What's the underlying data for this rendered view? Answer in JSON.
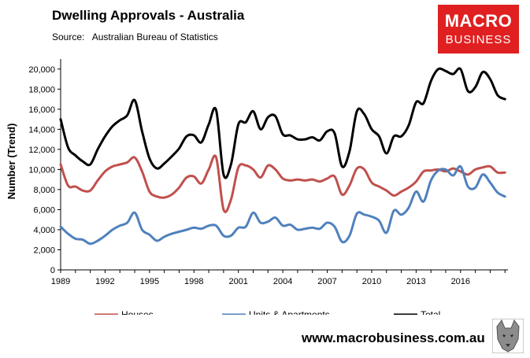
{
  "title": "Dwelling Approvals - Australia",
  "source": "Source:   Australian Bureau of Statistics",
  "logo": {
    "line1": "MACRO",
    "line2": "BUSINESS"
  },
  "url": "www.macrobusiness.com.au",
  "chart_data": {
    "type": "line",
    "title": "Dwelling Approvals - Australia",
    "xlabel": "",
    "ylabel": "Number (Trend)",
    "xlim": [
      1989,
      2019.2
    ],
    "ylim": [
      0,
      21000
    ],
    "yticks": [
      0,
      2000,
      4000,
      6000,
      8000,
      10000,
      12000,
      14000,
      16000,
      18000,
      20000
    ],
    "ytick_labels": [
      "0",
      "2,000",
      "4,000",
      "6,000",
      "8,000",
      "10,000",
      "12,000",
      "14,000",
      "16,000",
      "18,000",
      "20,000"
    ],
    "xticks": [
      1989,
      1992,
      1995,
      1998,
      2001,
      2004,
      2007,
      2010,
      2013,
      2016
    ],
    "xtick_labels": [
      "1989",
      "1992",
      "1995",
      "1998",
      "2001",
      "2004",
      "2007",
      "2010",
      "2013",
      "2016"
    ],
    "legend_position": "bottom",
    "series": [
      {
        "name": "Houses",
        "color": "#c0504d",
        "x": [
          1989.0,
          1989.5,
          1990.0,
          1990.5,
          1991.0,
          1991.5,
          1992.0,
          1992.5,
          1993.0,
          1993.5,
          1994.0,
          1994.5,
          1995.0,
          1995.5,
          1996.0,
          1996.5,
          1997.0,
          1997.5,
          1998.0,
          1998.5,
          1999.0,
          1999.5,
          2000.0,
          2000.5,
          2001.0,
          2001.5,
          2002.0,
          2002.5,
          2003.0,
          2003.5,
          2004.0,
          2004.5,
          2005.0,
          2005.5,
          2006.0,
          2006.5,
          2007.0,
          2007.5,
          2008.0,
          2008.5,
          2009.0,
          2009.5,
          2010.0,
          2010.5,
          2011.0,
          2011.5,
          2012.0,
          2012.5,
          2013.0,
          2013.5,
          2014.0,
          2014.5,
          2015.0,
          2015.5,
          2016.0,
          2016.5,
          2017.0,
          2017.5,
          2018.0,
          2018.5,
          2019.0
        ],
        "values": [
          10500,
          8400,
          8300,
          7900,
          7900,
          8900,
          9800,
          10300,
          10500,
          10700,
          11200,
          9800,
          7800,
          7300,
          7200,
          7500,
          8200,
          9200,
          9300,
          8600,
          10000,
          11200,
          6000,
          7000,
          10200,
          10400,
          10000,
          9200,
          10400,
          10000,
          9100,
          8900,
          9000,
          8900,
          9000,
          8800,
          9100,
          9300,
          7500,
          8400,
          10100,
          10000,
          8700,
          8300,
          7900,
          7400,
          7800,
          8200,
          8800,
          9800,
          9900,
          10000,
          9800,
          10100,
          9800,
          9500,
          10000,
          10200,
          10300,
          9700,
          9700
        ]
      },
      {
        "name": "Units & Apartments",
        "color": "#4f81bd",
        "x": [
          1989.0,
          1989.5,
          1990.0,
          1990.5,
          1991.0,
          1991.5,
          1992.0,
          1992.5,
          1993.0,
          1993.5,
          1994.0,
          1994.5,
          1995.0,
          1995.5,
          1996.0,
          1996.5,
          1997.0,
          1997.5,
          1998.0,
          1998.5,
          1999.0,
          1999.5,
          2000.0,
          2000.5,
          2001.0,
          2001.5,
          2002.0,
          2002.5,
          2003.0,
          2003.5,
          2004.0,
          2004.5,
          2005.0,
          2005.5,
          2006.0,
          2006.5,
          2007.0,
          2007.5,
          2008.0,
          2008.5,
          2009.0,
          2009.5,
          2010.0,
          2010.5,
          2011.0,
          2011.5,
          2012.0,
          2012.5,
          2013.0,
          2013.5,
          2014.0,
          2014.5,
          2015.0,
          2015.5,
          2016.0,
          2016.5,
          2017.0,
          2017.5,
          2018.0,
          2018.5,
          2019.0
        ],
        "values": [
          4300,
          3600,
          3100,
          3000,
          2600,
          2900,
          3400,
          4000,
          4400,
          4700,
          5700,
          4000,
          3500,
          2900,
          3300,
          3600,
          3800,
          4000,
          4200,
          4100,
          4400,
          4400,
          3400,
          3400,
          4200,
          4300,
          5700,
          4700,
          4800,
          5200,
          4400,
          4500,
          4000,
          4100,
          4200,
          4100,
          4700,
          4300,
          2800,
          3400,
          5600,
          5500,
          5300,
          4900,
          3700,
          5900,
          5500,
          6200,
          7800,
          6800,
          8900,
          9900,
          10000,
          9400,
          10300,
          8300,
          8200,
          9500,
          8700,
          7700,
          7300
        ]
      },
      {
        "name": "Total",
        "color": "#000000",
        "x": [
          1989.0,
          1989.5,
          1990.0,
          1990.5,
          1991.0,
          1991.5,
          1992.0,
          1992.5,
          1993.0,
          1993.5,
          1994.0,
          1994.5,
          1995.0,
          1995.5,
          1996.0,
          1996.5,
          1997.0,
          1997.5,
          1998.0,
          1998.5,
          1999.0,
          1999.5,
          2000.0,
          2000.5,
          2001.0,
          2001.5,
          2002.0,
          2002.5,
          2003.0,
          2003.5,
          2004.0,
          2004.5,
          2005.0,
          2005.5,
          2006.0,
          2006.5,
          2007.0,
          2007.5,
          2008.0,
          2008.5,
          2009.0,
          2009.5,
          2010.0,
          2010.5,
          2011.0,
          2011.5,
          2012.0,
          2012.5,
          2013.0,
          2013.5,
          2014.0,
          2014.5,
          2015.0,
          2015.5,
          2016.0,
          2016.5,
          2017.0,
          2017.5,
          2018.0,
          2018.5,
          2019.0
        ],
        "values": [
          15000,
          12200,
          11400,
          10800,
          10500,
          12000,
          13300,
          14300,
          14900,
          15400,
          16900,
          13800,
          11100,
          10100,
          10600,
          11300,
          12100,
          13300,
          13400,
          12700,
          14500,
          15900,
          9500,
          10500,
          14500,
          14700,
          15800,
          14000,
          15200,
          15300,
          13500,
          13400,
          13000,
          13000,
          13200,
          12900,
          13800,
          13600,
          10300,
          11800,
          15800,
          15500,
          14000,
          13300,
          11600,
          13300,
          13300,
          14400,
          16700,
          16600,
          18800,
          20000,
          19800,
          19500,
          20000,
          17800,
          18200,
          19700,
          19000,
          17400,
          17000
        ]
      }
    ]
  }
}
